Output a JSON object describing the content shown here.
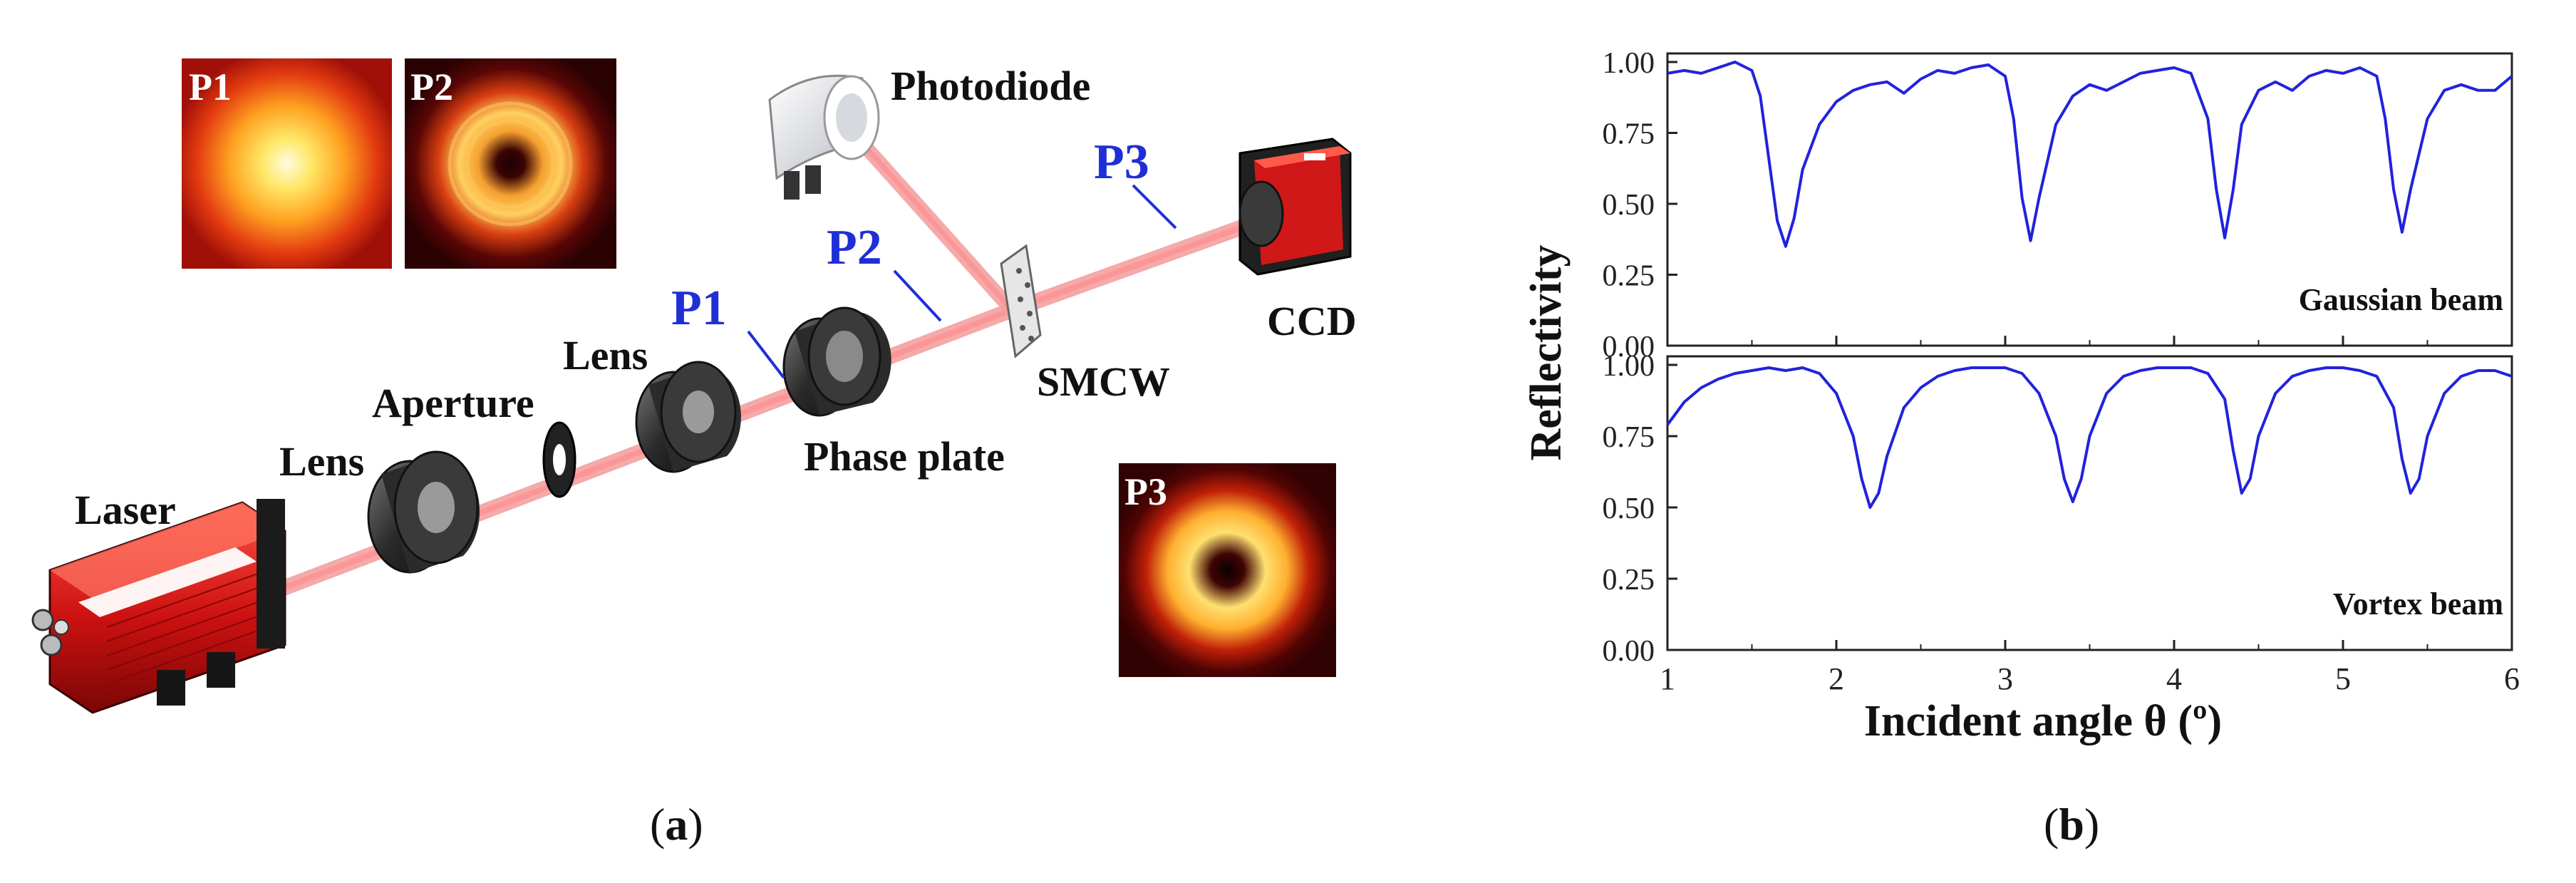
{
  "panel_a": {
    "caption_open": "(",
    "caption_letter": "a",
    "caption_close": ")",
    "labels": {
      "photodiode": "Photodiode",
      "ccd": "CCD",
      "smcw": "SMCW",
      "phase_plate": "Phase plate",
      "lens_1": "Lens",
      "lens_2": "Lens",
      "aperture": "Aperture",
      "laser": "Laser"
    },
    "positions": {
      "p1": "P1",
      "p2": "P2",
      "p3": "P3"
    },
    "insets": {
      "p1": "P1",
      "p2": "P2",
      "p3": "P3"
    },
    "colors": {
      "beam": "#f08080",
      "position_label": "#1f2fd6",
      "laser_body": "#cc1111"
    }
  },
  "panel_b": {
    "caption_open": "(",
    "caption_letter": "b",
    "caption_close": ")",
    "chart_data": {
      "type": "line",
      "title": "",
      "xlabel": "Incident angle θ (º)",
      "ylabel": "Reflectivity",
      "xlim": [
        1,
        6
      ],
      "ylim": [
        0,
        1
      ],
      "x_ticks": [
        "1",
        "2",
        "3",
        "4",
        "5",
        "6"
      ],
      "y_ticks": [
        "0.00",
        "0.25",
        "0.50",
        "0.75",
        "1.00"
      ],
      "line_color": "#2222dd",
      "subplots": [
        {
          "name": "Gaussian beam",
          "x": [
            1.0,
            1.1,
            1.2,
            1.3,
            1.4,
            1.5,
            1.55,
            1.6,
            1.65,
            1.7,
            1.75,
            1.8,
            1.9,
            2.0,
            2.1,
            2.2,
            2.3,
            2.4,
            2.5,
            2.6,
            2.7,
            2.8,
            2.9,
            3.0,
            3.05,
            3.1,
            3.15,
            3.2,
            3.3,
            3.4,
            3.5,
            3.6,
            3.7,
            3.8,
            3.9,
            4.0,
            4.1,
            4.2,
            4.25,
            4.3,
            4.35,
            4.4,
            4.5,
            4.6,
            4.7,
            4.8,
            4.9,
            5.0,
            5.1,
            5.2,
            5.25,
            5.3,
            5.35,
            5.4,
            5.5,
            5.6,
            5.7,
            5.8,
            5.9,
            6.0
          ],
          "y": [
            0.96,
            0.97,
            0.96,
            0.98,
            1.0,
            0.97,
            0.88,
            0.66,
            0.44,
            0.35,
            0.45,
            0.62,
            0.78,
            0.86,
            0.9,
            0.92,
            0.93,
            0.89,
            0.94,
            0.97,
            0.96,
            0.98,
            0.99,
            0.95,
            0.8,
            0.52,
            0.37,
            0.52,
            0.78,
            0.88,
            0.92,
            0.9,
            0.93,
            0.96,
            0.97,
            0.98,
            0.96,
            0.8,
            0.55,
            0.38,
            0.55,
            0.78,
            0.9,
            0.93,
            0.9,
            0.95,
            0.97,
            0.96,
            0.98,
            0.95,
            0.8,
            0.55,
            0.4,
            0.55,
            0.8,
            0.9,
            0.92,
            0.9,
            0.9,
            0.95
          ]
        },
        {
          "name": "Vortex beam",
          "x": [
            1.0,
            1.1,
            1.2,
            1.3,
            1.4,
            1.5,
            1.6,
            1.7,
            1.8,
            1.9,
            2.0,
            2.1,
            2.15,
            2.2,
            2.25,
            2.3,
            2.4,
            2.5,
            2.6,
            2.7,
            2.8,
            2.9,
            3.0,
            3.1,
            3.2,
            3.3,
            3.35,
            3.4,
            3.45,
            3.5,
            3.6,
            3.7,
            3.8,
            3.9,
            4.0,
            4.1,
            4.2,
            4.3,
            4.35,
            4.4,
            4.45,
            4.5,
            4.6,
            4.7,
            4.8,
            4.9,
            5.0,
            5.1,
            5.2,
            5.3,
            5.35,
            5.4,
            5.45,
            5.5,
            5.6,
            5.7,
            5.8,
            5.9,
            6.0
          ],
          "y": [
            0.79,
            0.87,
            0.92,
            0.95,
            0.97,
            0.98,
            0.99,
            0.98,
            0.99,
            0.97,
            0.9,
            0.75,
            0.6,
            0.5,
            0.55,
            0.68,
            0.85,
            0.92,
            0.96,
            0.98,
            0.99,
            0.99,
            0.99,
            0.97,
            0.9,
            0.75,
            0.6,
            0.52,
            0.6,
            0.75,
            0.9,
            0.96,
            0.98,
            0.99,
            0.99,
            0.99,
            0.97,
            0.88,
            0.7,
            0.55,
            0.6,
            0.75,
            0.9,
            0.96,
            0.98,
            0.99,
            0.99,
            0.98,
            0.96,
            0.85,
            0.67,
            0.55,
            0.6,
            0.75,
            0.9,
            0.96,
            0.98,
            0.98,
            0.96
          ]
        }
      ]
    }
  }
}
